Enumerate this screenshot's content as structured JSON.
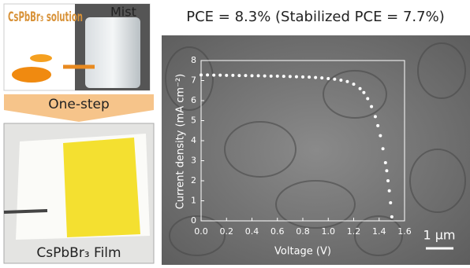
{
  "labels": {
    "solution": "CsPbBr₃ solution",
    "mist": "Mist",
    "step": "One-step",
    "film": "CsPbBr₃ Film",
    "scale_bar": "1 μm"
  },
  "chart_data": {
    "type": "scatter",
    "title": "PCE = 8.3% (Stabilized PCE = 7.7%)",
    "x_label": "Voltage (V)",
    "y_label": "Current density (mA cm⁻²)",
    "color": "#ffffff",
    "x": [
      0,
      0.05,
      0.1,
      0.15,
      0.2,
      0.25,
      0.3,
      0.35,
      0.4,
      0.45,
      0.5,
      0.55,
      0.6,
      0.65,
      0.7,
      0.75,
      0.8,
      0.85,
      0.9,
      0.95,
      1.0,
      1.05,
      1.1,
      1.15,
      1.2,
      1.25,
      1.28,
      1.31,
      1.34,
      1.37,
      1.39,
      1.41,
      1.43,
      1.45,
      1.46,
      1.47,
      1.48,
      1.49,
      1.5
    ],
    "values": [
      7.28,
      7.28,
      7.27,
      7.27,
      7.26,
      7.26,
      7.25,
      7.25,
      7.24,
      7.24,
      7.23,
      7.22,
      7.22,
      7.21,
      7.2,
      7.19,
      7.18,
      7.17,
      7.15,
      7.13,
      7.1,
      7.07,
      7.02,
      6.95,
      6.82,
      6.6,
      6.4,
      6.1,
      5.7,
      5.2,
      4.75,
      4.25,
      3.6,
      2.9,
      2.5,
      2.0,
      1.5,
      0.9,
      0.2
    ],
    "xlim": [
      0,
      1.6
    ],
    "ylim": [
      0,
      8
    ],
    "xticks": [
      {
        "value": 0,
        "label": "0.0"
      },
      0.2,
      0.4,
      0.6,
      0.8,
      {
        "value": 1,
        "label": "1.0"
      },
      1.2,
      1.4,
      1.6
    ],
    "yticks": [
      0,
      1,
      2,
      3,
      4,
      5,
      6,
      7,
      8
    ]
  }
}
